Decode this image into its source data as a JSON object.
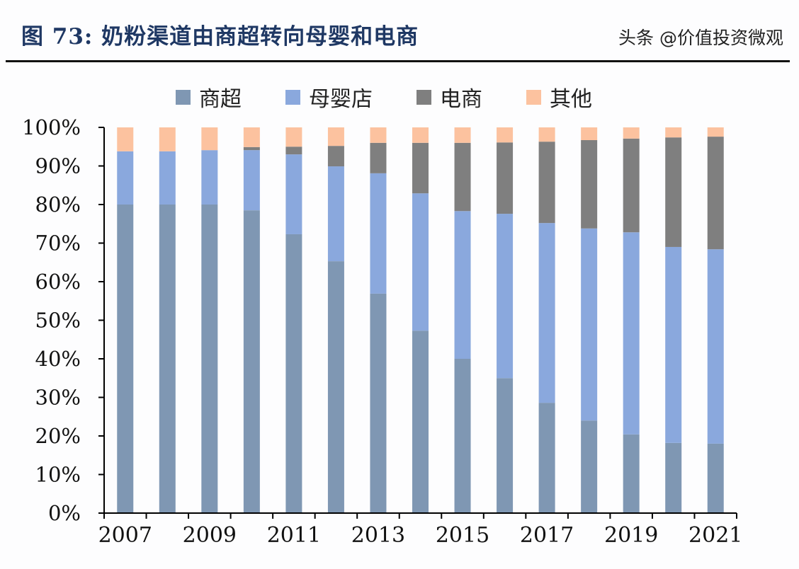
{
  "title": "图 73: 奶粉渠道由商超转向母婴和电商",
  "watermark": "头条 @价值投资微观",
  "chart_data": {
    "type": "bar",
    "stacked": true,
    "categories": [
      "2007",
      "2008",
      "2009",
      "2010",
      "2011",
      "2012",
      "2013",
      "2014",
      "2015",
      "2016",
      "2017",
      "2018",
      "2019",
      "2020",
      "2021"
    ],
    "x_tick_labels": [
      "2007",
      "2009",
      "2011",
      "2013",
      "2015",
      "2017",
      "2019",
      "2021"
    ],
    "ylim": [
      0,
      100
    ],
    "y_ticks": [
      "0%",
      "10%",
      "20%",
      "30%",
      "40%",
      "50%",
      "60%",
      "70%",
      "80%",
      "90%",
      "100%"
    ],
    "legend_position": "top",
    "grid": false,
    "series": [
      {
        "name": "商超",
        "color": "#7f97b3",
        "values": [
          80,
          80,
          80,
          78.5,
          72.3,
          65.3,
          56.9,
          47.3,
          40,
          35,
          28.6,
          24,
          20.4,
          18.2,
          18
        ]
      },
      {
        "name": "母婴店",
        "color": "#8aa8dd",
        "values": [
          13.8,
          13.8,
          14.1,
          15.6,
          20.7,
          24.6,
          31.2,
          35.6,
          38.3,
          42.6,
          46.6,
          49.8,
          52.4,
          50.8,
          50.4
        ]
      },
      {
        "name": "电商",
        "color": "#7f7f7f",
        "values": [
          0,
          0,
          0,
          0.8,
          2,
          5.3,
          7.9,
          13.1,
          17.7,
          18.5,
          21.1,
          22.9,
          24.3,
          28.4,
          29.2
        ]
      },
      {
        "name": "其他",
        "color": "#fcc29f",
        "values": [
          6.2,
          6.2,
          5.9,
          5.1,
          5,
          4.8,
          4,
          4,
          4,
          3.9,
          3.7,
          3.3,
          2.9,
          2.6,
          2.4
        ]
      }
    ]
  }
}
